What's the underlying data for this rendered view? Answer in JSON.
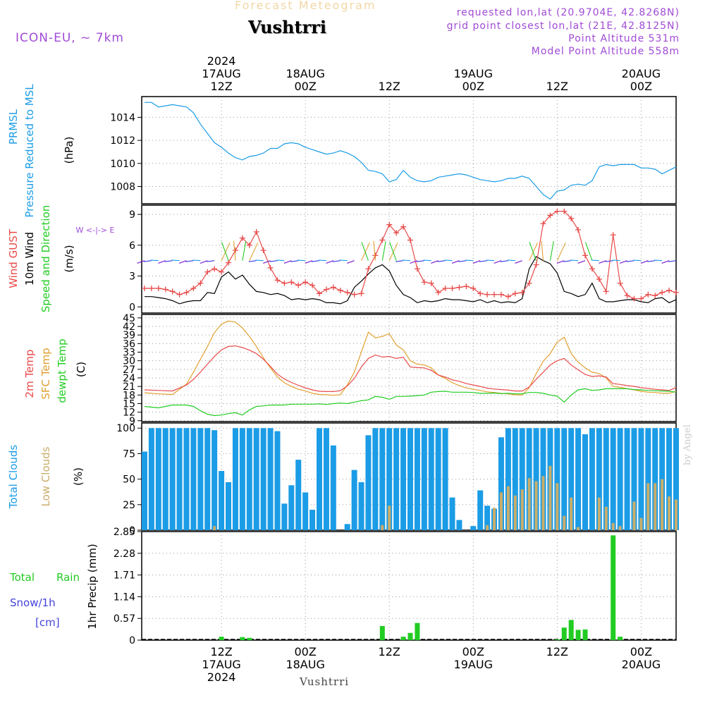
{
  "header": {
    "title": "Forecast Meteogram",
    "location": "Vushtrri",
    "model": "ICON-EU, ~ 7km",
    "requested": "requested lon,lat (20.9704E, 42.8268N)",
    "grid_point": "grid point closest lon,lat (21E, 42.8125N)",
    "point_alt": "Point Altitude 531m",
    "model_alt": "Model Point Altitude 558m",
    "footer_location": "Vushtrri",
    "watermark": "by Angel"
  },
  "time_axis": {
    "top": [
      {
        "hour": 12,
        "lines": [
          "2024",
          "17AUG",
          "12Z"
        ]
      },
      {
        "hour": 24,
        "lines": [
          "18AUG",
          "00Z"
        ]
      },
      {
        "hour": 36,
        "lines": [
          "12Z"
        ]
      },
      {
        "hour": 48,
        "lines": [
          "19AUG",
          "00Z"
        ]
      },
      {
        "hour": 60,
        "lines": [
          "12Z"
        ]
      },
      {
        "hour": 72,
        "lines": [
          "20AUG",
          "00Z"
        ]
      }
    ],
    "bottom": [
      {
        "hour": 12,
        "lines": [
          "12Z",
          "17AUG",
          "2024"
        ]
      },
      {
        "hour": 24,
        "lines": [
          "00Z",
          "18AUG"
        ]
      },
      {
        "hour": 36,
        "lines": [
          "12Z"
        ]
      },
      {
        "hour": 48,
        "lines": [
          "00Z",
          "19AUG"
        ]
      },
      {
        "hour": 60,
        "lines": [
          "12Z"
        ]
      },
      {
        "hour": 72,
        "lines": [
          "00Z",
          "20AUG"
        ]
      }
    ],
    "range_hours": [
      0.6,
      77
    ]
  },
  "colors": {
    "pressure": "#1b9ce6",
    "gust": "#e84a4a",
    "wind": "#000000",
    "t2m": "#e84a4a",
    "sfc": "#e0a030",
    "dew": "#22cc22",
    "total_cloud": "#1b9ce6",
    "low_cloud": "#c9ad6a",
    "rain": "#22cc22",
    "snow": "#4444dd",
    "purple": "#a04bd6"
  },
  "chart_data": [
    {
      "type": "line",
      "id": "pressure",
      "labels": [
        "PRMSL",
        "Pressure Reduced to MSL",
        "(hPa)"
      ],
      "yticks": [
        1008,
        1010,
        1012,
        1014
      ],
      "ylim": [
        1006.5,
        1015.8
      ],
      "x": [
        1,
        2,
        3,
        4,
        5,
        6,
        7,
        8,
        9,
        10,
        11,
        12,
        13,
        14,
        15,
        16,
        17,
        18,
        19,
        20,
        21,
        22,
        23,
        24,
        25,
        26,
        27,
        28,
        29,
        30,
        31,
        32,
        33,
        34,
        35,
        36,
        37,
        38,
        39,
        40,
        41,
        42,
        43,
        44,
        45,
        46,
        47,
        48,
        49,
        50,
        51,
        52,
        53,
        54,
        55,
        56,
        57,
        58,
        59,
        60,
        61,
        62,
        63,
        64,
        65,
        66,
        67,
        68,
        69,
        70,
        71,
        72,
        73,
        74,
        75,
        76,
        77
      ],
      "values": [
        1015.3,
        1015.3,
        1014.9,
        1015.0,
        1015.1,
        1015.0,
        1014.9,
        1014.4,
        1013.4,
        1012.6,
        1011.8,
        1011.4,
        1010.9,
        1010.5,
        1010.3,
        1010.6,
        1010.7,
        1010.9,
        1011.3,
        1011.3,
        1011.7,
        1011.8,
        1011.7,
        1011.4,
        1011.2,
        1011.0,
        1010.8,
        1010.9,
        1011.1,
        1010.9,
        1010.6,
        1010.1,
        1009.4,
        1009.3,
        1009.1,
        1008.4,
        1008.6,
        1009.4,
        1008.8,
        1008.5,
        1008.4,
        1008.5,
        1008.8,
        1008.9,
        1009.0,
        1009.1,
        1009.0,
        1008.8,
        1008.6,
        1008.5,
        1008.4,
        1008.5,
        1008.7,
        1008.7,
        1008.9,
        1008.7,
        1008.0,
        1007.3,
        1006.9,
        1007.6,
        1007.7,
        1008.1,
        1008.2,
        1008.1,
        1008.5,
        1009.7,
        1009.9,
        1009.8,
        1009.9,
        1009.9,
        1009.9,
        1009.6,
        1009.6,
        1009.5,
        1009.1,
        1009.4,
        1009.7
      ]
    },
    {
      "type": "line",
      "id": "wind",
      "labels": [
        "Wind GUST",
        "10m Wind",
        "Speed and Direction",
        "(m/s)"
      ],
      "compass": "W <-|-> E",
      "yticks": [
        0,
        3,
        6,
        9
      ],
      "ylim": [
        -0.6,
        9.9
      ],
      "x": [
        1,
        2,
        3,
        4,
        5,
        6,
        7,
        8,
        9,
        10,
        11,
        12,
        13,
        14,
        15,
        16,
        17,
        18,
        19,
        20,
        21,
        22,
        23,
        24,
        25,
        26,
        27,
        28,
        29,
        30,
        31,
        32,
        33,
        34,
        35,
        36,
        37,
        38,
        39,
        40,
        41,
        42,
        43,
        44,
        45,
        46,
        47,
        48,
        49,
        50,
        51,
        52,
        53,
        54,
        55,
        56,
        57,
        58,
        59,
        60,
        61,
        62,
        63,
        64,
        65,
        66,
        67,
        68,
        69,
        70,
        71,
        72,
        73,
        74,
        75,
        76,
        77
      ],
      "gust": [
        1.8,
        1.8,
        1.8,
        1.7,
        1.5,
        1.2,
        1.4,
        1.8,
        2.3,
        3.4,
        3.7,
        3.4,
        4.3,
        5.5,
        6.7,
        6.0,
        7.3,
        5.5,
        3.8,
        2.6,
        2.3,
        2.4,
        2.1,
        2.4,
        2.1,
        1.3,
        1.7,
        1.9,
        1.6,
        1.4,
        1.2,
        1.3,
        3.7,
        5.0,
        6.5,
        8.0,
        7.2,
        7.8,
        6.5,
        3.7,
        2.4,
        2.3,
        1.4,
        1.8,
        1.8,
        1.9,
        2.0,
        1.8,
        1.3,
        1.2,
        1.2,
        1.2,
        1.0,
        1.3,
        1.4,
        2.3,
        4.1,
        8.1,
        8.9,
        9.3,
        9.3,
        8.6,
        7.5,
        5.0,
        3.7,
        2.7,
        1.5,
        7.0,
        2.3,
        1.1,
        0.8,
        0.8,
        1.2,
        1.1,
        1.4,
        1.6,
        1.4
      ],
      "wind": [
        1.0,
        1.0,
        0.9,
        0.8,
        0.6,
        0.3,
        0.5,
        0.6,
        0.6,
        1.4,
        1.3,
        2.9,
        3.4,
        2.7,
        3.1,
        2.2,
        1.5,
        1.4,
        1.2,
        1.3,
        1.1,
        0.7,
        0.8,
        0.7,
        0.8,
        0.7,
        0.4,
        0.4,
        0.3,
        0.6,
        1.9,
        2.5,
        3.2,
        3.8,
        4.1,
        3.5,
        2.1,
        1.2,
        0.9,
        0.4,
        0.6,
        0.5,
        0.6,
        0.8,
        0.7,
        0.7,
        0.6,
        0.5,
        0.7,
        0.4,
        0.6,
        0.4,
        0.5,
        0.4,
        0.8,
        3.7,
        4.9,
        4.5,
        4.2,
        3.3,
        1.5,
        1.3,
        1.0,
        1.2,
        2.3,
        0.8,
        0.5,
        0.5,
        0.6,
        0.7,
        0.7,
        0.5,
        0.4,
        0.8,
        0.9,
        0.4,
        0.7
      ]
    },
    {
      "type": "line",
      "id": "temperature",
      "labels": [
        "2m Temp",
        "SFC Temp",
        "dewpt Temp",
        "(C)"
      ],
      "yticks": [
        9,
        12,
        15,
        18,
        21,
        24,
        27,
        30,
        33,
        36,
        39,
        42,
        45
      ],
      "ylim": [
        8.7,
        46.2
      ],
      "x": [
        1,
        3,
        5,
        7,
        8,
        9,
        10,
        11,
        12,
        13,
        14,
        15,
        16,
        17,
        18,
        19,
        20,
        21,
        22,
        23,
        24,
        25,
        26,
        27,
        28,
        29,
        30,
        31,
        32,
        33,
        34,
        35,
        36,
        37,
        38,
        39,
        40,
        41,
        42,
        43,
        44,
        45,
        46,
        47,
        48,
        49,
        50,
        51,
        52,
        53,
        54,
        55,
        56,
        57,
        58,
        59,
        60,
        61,
        62,
        63,
        64,
        65,
        66,
        67,
        68,
        69,
        70,
        71,
        72,
        73,
        74,
        75,
        76,
        77
      ],
      "t2m": [
        19.8,
        19.6,
        19.4,
        21.5,
        23.5,
        26.0,
        28.8,
        31.5,
        33.8,
        35.0,
        35.2,
        34.6,
        33.7,
        32.5,
        30.5,
        28.0,
        25.3,
        23.6,
        22.4,
        21.4,
        20.5,
        19.8,
        19.3,
        19.2,
        19.2,
        19.5,
        21.2,
        23.8,
        27.8,
        30.8,
        32.0,
        31.3,
        31.5,
        30.8,
        31.2,
        27.8,
        27.6,
        27.5,
        26.6,
        25.0,
        24.3,
        23.3,
        22.8,
        22.0,
        21.5,
        21.0,
        20.4,
        20.1,
        19.9,
        19.7,
        19.4,
        19.4,
        20.8,
        23.5,
        26.0,
        28.5,
        30.0,
        30.8,
        28.5,
        26.8,
        25.2,
        24.5,
        24.7,
        24.3,
        22.0,
        21.7,
        21.3,
        21.0,
        20.6,
        20.3,
        20.0,
        19.8,
        19.6,
        20.6
      ],
      "sfc": [
        18.8,
        18.4,
        18.2,
        21.8,
        26.0,
        30.5,
        35.0,
        39.8,
        42.8,
        43.9,
        43.5,
        41.5,
        38.5,
        35.0,
        31.0,
        27.5,
        24.3,
        22.3,
        21.0,
        20.0,
        19.4,
        18.6,
        18.2,
        18.1,
        17.9,
        18.1,
        21.5,
        26.0,
        33.0,
        40.0,
        38.0,
        38.5,
        39.5,
        35.5,
        33.8,
        30.0,
        28.8,
        28.5,
        27.5,
        25.0,
        23.8,
        22.3,
        21.3,
        20.5,
        20.0,
        19.6,
        19.1,
        18.9,
        18.6,
        18.4,
        18.1,
        18.0,
        20.5,
        25.5,
        29.8,
        32.5,
        36.5,
        38.2,
        32.5,
        29.5,
        27.5,
        26.0,
        25.5,
        24.0,
        21.0,
        20.7,
        20.2,
        19.8,
        19.3,
        19.0,
        18.9,
        18.6,
        18.6,
        19.3
      ],
      "dew": [
        14.0,
        13.5,
        14.5,
        14.5,
        14.0,
        12.5,
        11.3,
        10.8,
        11.0,
        11.5,
        11.8,
        11.0,
        12.8,
        14.0,
        14.2,
        14.5,
        14.5,
        14.5,
        14.8,
        14.8,
        14.8,
        14.8,
        14.9,
        14.7,
        15.0,
        15.2,
        15.0,
        15.5,
        16.0,
        16.3,
        17.5,
        17.2,
        16.5,
        17.5,
        17.5,
        17.6,
        17.8,
        18.0,
        19.0,
        19.2,
        19.3,
        19.0,
        19.0,
        19.0,
        18.9,
        18.6,
        18.6,
        18.7,
        18.5,
        18.6,
        18.4,
        18.4,
        18.9,
        18.9,
        18.6,
        18.0,
        17.6,
        15.5,
        18.0,
        19.8,
        20.2,
        19.6,
        19.8,
        20.2,
        20.2,
        20.2,
        20.2,
        19.9,
        19.8,
        19.6,
        19.5,
        19.4,
        19.3,
        19.0
      ]
    },
    {
      "type": "bar",
      "id": "clouds",
      "labels": [
        "Total Clouds",
        "Low Clouds",
        "(%)"
      ],
      "yticks": [
        0,
        25,
        50,
        75,
        100
      ],
      "ylim": [
        0,
        105
      ],
      "x": [
        1,
        2,
        3,
        4,
        5,
        6,
        7,
        8,
        9,
        10,
        11,
        12,
        13,
        14,
        15,
        16,
        17,
        18,
        19,
        20,
        21,
        22,
        23,
        24,
        25,
        26,
        27,
        28,
        29,
        30,
        31,
        32,
        33,
        34,
        35,
        36,
        37,
        38,
        39,
        40,
        41,
        42,
        43,
        44,
        45,
        46,
        47,
        48,
        49,
        50,
        51,
        52,
        53,
        54,
        55,
        56,
        57,
        58,
        59,
        60,
        61,
        62,
        63,
        64,
        65,
        66,
        67,
        68,
        69,
        70,
        71,
        72,
        73,
        74,
        75,
        76,
        77
      ],
      "total": [
        77,
        100,
        100,
        100,
        100,
        100,
        100,
        100,
        100,
        100,
        98,
        58,
        47,
        100,
        100,
        100,
        100,
        100,
        100,
        97,
        26,
        44,
        69,
        37,
        20,
        100,
        100,
        83,
        0,
        6,
        59,
        47,
        93,
        100,
        100,
        100,
        100,
        100,
        100,
        100,
        100,
        100,
        100,
        100,
        32,
        10,
        0,
        4,
        39,
        24,
        21,
        91,
        100,
        100,
        100,
        100,
        100,
        100,
        100,
        100,
        100,
        100,
        100,
        94,
        100,
        100,
        100,
        100,
        100,
        100,
        100,
        100,
        100,
        100,
        100,
        100,
        100
      ],
      "low": [
        0,
        0,
        0,
        0,
        0,
        0,
        0,
        0,
        0,
        0,
        4,
        0,
        0,
        0,
        0,
        0,
        0,
        0,
        0,
        0,
        0,
        0,
        0,
        0,
        0,
        0,
        0,
        0,
        0,
        0,
        0,
        0,
        0,
        0,
        5,
        24,
        0,
        0,
        0,
        0,
        0,
        0,
        0,
        0,
        0,
        0,
        0,
        0,
        0,
        5,
        22,
        37,
        43,
        34,
        40,
        51,
        48,
        53,
        63,
        46,
        14,
        32,
        3,
        0,
        0,
        32,
        23,
        7,
        4,
        0,
        28,
        12,
        46,
        46,
        50,
        33,
        30
      ]
    },
    {
      "type": "bar",
      "id": "precip",
      "labels": [
        "Total",
        "Rain",
        "Snow/1h",
        "[cm]",
        "1hr Precip (mm)"
      ],
      "yticks": [
        0,
        0.57,
        1.14,
        1.71,
        2.28,
        2.85
      ],
      "ylim": [
        0,
        2.85
      ],
      "x": [
        12,
        15,
        16,
        35,
        38,
        39,
        40,
        60,
        61,
        62,
        63,
        64,
        68,
        69
      ],
      "rain": [
        0.09,
        0.08,
        0.06,
        0.37,
        0.09,
        0.19,
        0.45,
        0.02,
        0.33,
        0.53,
        0.27,
        0.28,
        2.75,
        0.09
      ]
    }
  ]
}
